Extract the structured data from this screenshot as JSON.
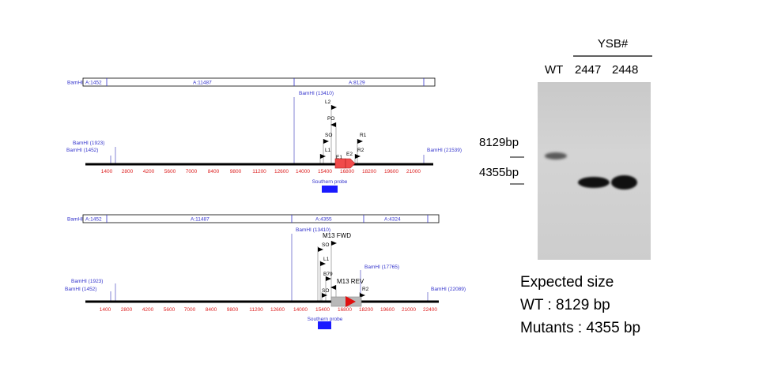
{
  "top_map": {
    "segments": [
      "A:1452",
      "A:11487",
      "A:8129"
    ],
    "segments_prefix": "BamHI",
    "sites": [
      "BamHI (13410)",
      "BamHI (1923)",
      "BamHI (1452)",
      "BamHI (21539)"
    ],
    "primers": [
      "L2",
      "PO",
      "SO",
      "R1",
      "L1",
      "R2",
      "E1",
      "E2"
    ],
    "ticks": [
      "1400",
      "2800",
      "4200",
      "5600",
      "7000",
      "8400",
      "9800",
      "11200",
      "12600",
      "14000",
      "15400",
      "16800",
      "18200",
      "19600",
      "21000"
    ],
    "probe_label": "Southern probe",
    "colors": {
      "feature": "#f04a4a"
    }
  },
  "bottom_map": {
    "segments": [
      "A:1452",
      "A:11487",
      "A:4355",
      "A:4324"
    ],
    "segments_prefix": "BamHI",
    "sites": [
      "BamHI (13410)",
      "BamHI (1923)",
      "BamHI (1452)",
      "BamHI (17765)",
      "BamHI (22089)"
    ],
    "primers": [
      "M13 FWD",
      "SO",
      "L1",
      "B79",
      "M13 REV",
      "SO",
      "R2"
    ],
    "ticks": [
      "1400",
      "2800",
      "4200",
      "5600",
      "7000",
      "8400",
      "9800",
      "11200",
      "12600",
      "14000",
      "15400",
      "16800",
      "18200",
      "19600",
      "21000",
      "22400"
    ],
    "probe_label": "Southern probe",
    "colors": {
      "feature": "#e01010",
      "cassette": "#b8b8b8"
    }
  },
  "gel": {
    "header": "YSB#",
    "lanes": [
      "WT",
      "2447",
      "2448"
    ],
    "markers": [
      "8129bp",
      "4355bp"
    ]
  },
  "expected": {
    "title": "Expected size",
    "wt": "WT : 8129 bp",
    "mutants": "Mutants : 4355 bp"
  },
  "colors": {
    "site": "#3333cc",
    "ticks": "#dd2222",
    "probe": "#1a1aff",
    "backbone": "#000000"
  }
}
